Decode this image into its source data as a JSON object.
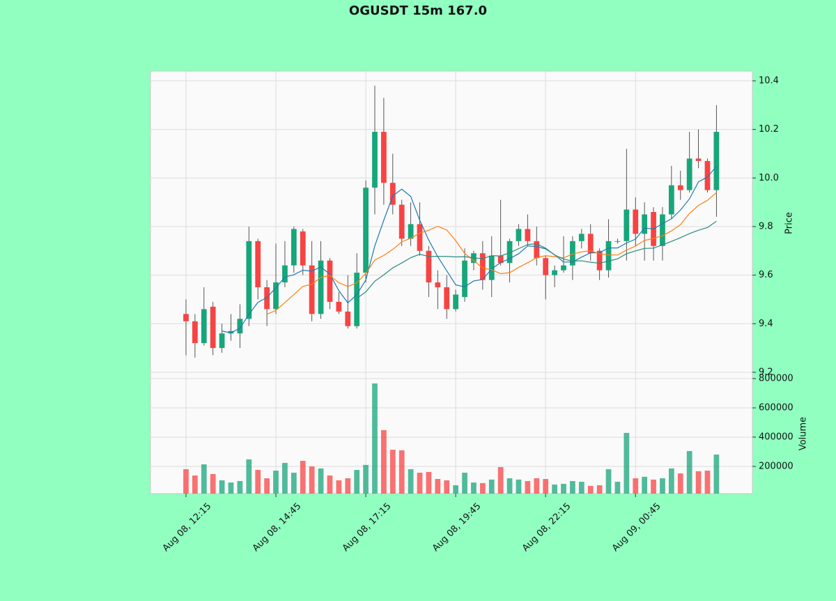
{
  "chart_data": {
    "type": "candlestick",
    "title": "OGUSDT 15m 167.0",
    "xlim": [
      -3.95,
      63.0
    ],
    "xticks": [
      {
        "value": 0,
        "label": "Aug 08, 12:15"
      },
      {
        "value": 10,
        "label": "Aug 08, 14:45"
      },
      {
        "value": 20,
        "label": "Aug 08, 17:15"
      },
      {
        "value": 30,
        "label": "Aug 08, 19:45"
      },
      {
        "value": 40,
        "label": "Aug 08, 22:15"
      },
      {
        "value": 50,
        "label": "Aug 09, 00:45"
      }
    ],
    "ylabel": "Price",
    "ylim": [
      9.174,
      10.44
    ],
    "yticks": [
      9.2,
      9.4,
      9.6,
      9.8,
      {
        "value": 10,
        "label": "10.0"
      },
      10.2,
      10.4
    ],
    "volume_label": "Volume",
    "volume_lim": [
      14000,
      800000
    ],
    "volume_ticks": [
      200000,
      400000,
      600000,
      800000
    ],
    "up_color": "#17a67a",
    "down_color": "#f84343",
    "grid": true,
    "open": [
      9.44,
      9.41,
      9.32,
      9.47,
      9.3,
      9.36,
      9.36,
      9.42,
      9.74,
      9.55,
      9.46,
      9.57,
      9.64,
      9.78,
      9.64,
      9.44,
      9.66,
      9.49,
      9.45,
      9.39,
      9.61,
      9.96,
      10.19,
      9.98,
      9.89,
      9.75,
      9.81,
      9.7,
      9.57,
      9.55,
      9.46,
      9.51,
      9.65,
      9.69,
      9.58,
      9.68,
      9.65,
      9.74,
      9.79,
      9.74,
      9.67,
      9.6,
      9.62,
      9.64,
      9.74,
      9.77,
      9.7,
      9.62,
      9.74,
      9.74,
      9.87,
      9.77,
      9.86,
      9.72,
      9.85,
      9.97,
      9.95,
      10.08,
      10.07,
      9.95
    ],
    "high": [
      9.5,
      9.44,
      9.55,
      9.49,
      9.4,
      9.44,
      9.48,
      9.8,
      9.75,
      9.58,
      9.73,
      9.74,
      9.8,
      9.79,
      9.74,
      9.74,
      9.67,
      9.53,
      9.6,
      9.69,
      9.99,
      10.38,
      10.33,
      10.1,
      9.91,
      9.9,
      9.9,
      9.72,
      9.62,
      9.6,
      9.54,
      9.71,
      9.7,
      9.74,
      9.76,
      9.91,
      9.75,
      9.81,
      9.85,
      9.8,
      9.68,
      9.64,
      9.76,
      9.76,
      9.79,
      9.81,
      9.71,
      9.83,
      9.75,
      10.12,
      9.92,
      9.9,
      9.88,
      9.88,
      10.05,
      10.03,
      10.19,
      10.2,
      10.08,
      10.3
    ],
    "low": [
      9.27,
      9.26,
      9.31,
      9.27,
      9.28,
      9.33,
      9.3,
      9.39,
      9.5,
      9.39,
      9.44,
      9.55,
      9.61,
      9.6,
      9.41,
      9.42,
      9.46,
      9.44,
      9.38,
      9.38,
      9.57,
      9.85,
      9.89,
      9.85,
      9.72,
      9.72,
      9.68,
      9.51,
      9.46,
      9.42,
      9.45,
      9.49,
      9.62,
      9.54,
      9.51,
      9.64,
      9.57,
      9.72,
      9.72,
      9.64,
      9.5,
      9.55,
      9.61,
      9.58,
      9.71,
      9.66,
      9.58,
      9.59,
      9.73,
      9.66,
      9.72,
      9.66,
      9.66,
      9.66,
      9.83,
      9.91,
      9.94,
      10.04,
      9.94,
      9.84
    ],
    "close": [
      9.41,
      9.32,
      9.46,
      9.3,
      9.36,
      9.37,
      9.42,
      9.74,
      9.55,
      9.46,
      9.57,
      9.64,
      9.79,
      9.64,
      9.44,
      9.66,
      9.49,
      9.45,
      9.39,
      9.61,
      9.96,
      10.19,
      9.98,
      9.89,
      9.75,
      9.81,
      9.7,
      9.57,
      9.55,
      9.46,
      9.52,
      9.66,
      9.69,
      9.58,
      9.68,
      9.65,
      9.74,
      9.79,
      9.74,
      9.67,
      9.6,
      9.62,
      9.64,
      9.74,
      9.77,
      9.69,
      9.62,
      9.74,
      9.74,
      9.87,
      9.77,
      9.85,
      9.72,
      9.85,
      9.97,
      9.95,
      10.08,
      10.07,
      9.95,
      10.19
    ],
    "volume": [
      181000,
      138000,
      214000,
      148000,
      105000,
      90000,
      100000,
      248000,
      176000,
      119000,
      171000,
      224000,
      157000,
      238000,
      200000,
      186000,
      138000,
      105000,
      119000,
      176000,
      210000,
      767000,
      448000,
      314000,
      310000,
      181000,
      157000,
      162000,
      114000,
      105000,
      71000,
      157000,
      90000,
      86000,
      110000,
      195000,
      119000,
      110000,
      100000,
      119000,
      114000,
      76000,
      81000,
      100000,
      95000,
      67000,
      71000,
      181000,
      95000,
      429000,
      119000,
      129000,
      110000,
      119000,
      186000,
      152000,
      305000,
      167000,
      171000,
      281000
    ],
    "moving_averages": [
      {
        "color": "#1f77b4",
        "values": [
          null,
          null,
          null,
          null,
          9.37,
          9.362,
          9.382,
          9.438,
          9.488,
          9.508,
          9.548,
          9.592,
          9.602,
          9.62,
          9.616,
          9.634,
          9.604,
          9.536,
          9.486,
          9.52,
          9.58,
          9.72,
          9.826,
          9.926,
          9.954,
          9.924,
          9.826,
          9.744,
          9.676,
          9.618,
          9.56,
          9.552,
          9.576,
          9.582,
          9.626,
          9.652,
          9.668,
          9.688,
          9.72,
          9.718,
          9.708,
          9.684,
          9.654,
          9.654,
          9.674,
          9.692,
          9.692,
          9.712,
          9.712,
          9.732,
          9.748,
          9.794,
          9.79,
          9.812,
          9.832,
          9.868,
          9.914,
          9.984,
          10.004,
          10.048
        ]
      },
      {
        "color": "#ff7f0e",
        "values": [
          null,
          null,
          null,
          null,
          null,
          null,
          null,
          null,
          null,
          9.439,
          9.455,
          9.487,
          9.52,
          9.554,
          9.562,
          9.591,
          9.598,
          9.569,
          9.553,
          9.568,
          9.607,
          9.662,
          9.681,
          9.706,
          9.737,
          9.752,
          9.773,
          9.785,
          9.801,
          9.786,
          9.742,
          9.689,
          9.66,
          9.629,
          9.622,
          9.606,
          9.61,
          9.632,
          9.651,
          9.672,
          9.68,
          9.676,
          9.671,
          9.687,
          9.696,
          9.7,
          9.688,
          9.683,
          9.683,
          9.703,
          9.72,
          9.743,
          9.751,
          9.762,
          9.782,
          9.808,
          9.854,
          9.887,
          9.908,
          9.94
        ]
      },
      {
        "color": "#2a8a80",
        "values": [
          null,
          null,
          null,
          null,
          null,
          null,
          null,
          null,
          null,
          null,
          null,
          null,
          null,
          null,
          null,
          null,
          null,
          null,
          null,
          9.504,
          9.531,
          9.575,
          9.601,
          9.63,
          9.65,
          9.672,
          9.686,
          9.677,
          9.677,
          9.677,
          9.675,
          9.676,
          9.671,
          9.668,
          9.68,
          9.679,
          9.692,
          9.709,
          9.726,
          9.729,
          9.711,
          9.683,
          9.666,
          9.658,
          9.659,
          9.653,
          9.649,
          9.658,
          9.667,
          9.688,
          9.7,
          9.71,
          9.711,
          9.725,
          9.739,
          9.754,
          9.771,
          9.785,
          9.796,
          9.822
        ]
      }
    ]
  }
}
